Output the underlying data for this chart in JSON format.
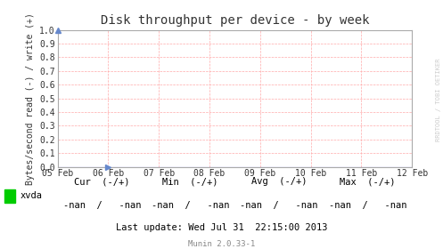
{
  "title": "Disk throughput per device - by week",
  "ylabel": "Bytes/second read (-) / write (+)",
  "ylim": [
    0.0,
    1.0
  ],
  "yticks": [
    0.0,
    0.1,
    0.2,
    0.3,
    0.4,
    0.5,
    0.6,
    0.7,
    0.8,
    0.9,
    1.0
  ],
  "xtick_labels": [
    "05 Feb",
    "06 Feb",
    "07 Feb",
    "08 Feb",
    "09 Feb",
    "10 Feb",
    "11 Feb",
    "12 Feb"
  ],
  "bg_color": "#ffffff",
  "plot_bg_color": "#ffffff",
  "border_color": "#aaaaaa",
  "title_color": "#333333",
  "label_color": "#333333",
  "tick_color": "#333333",
  "grid_color": "#ffaaaa",
  "watermark": "RRDTOOL / TOBI OETIKER",
  "legend_label": "xvda",
  "legend_color": "#00cc00",
  "table_headers": [
    "Cur  (-/+)",
    "Min  (-/+)",
    "Avg  (-/+)",
    "Max  (-/+)"
  ],
  "table_values": [
    "-nan  /   -nan",
    "-nan  /   -nan",
    "-nan  /   -nan",
    "-nan  /   -nan"
  ],
  "last_update": "Last update: Wed Jul 31  22:15:00 2013",
  "munin_version": "Munin 2.0.33-1",
  "font_family": "DejaVu Sans Mono",
  "n_xticks": 8
}
